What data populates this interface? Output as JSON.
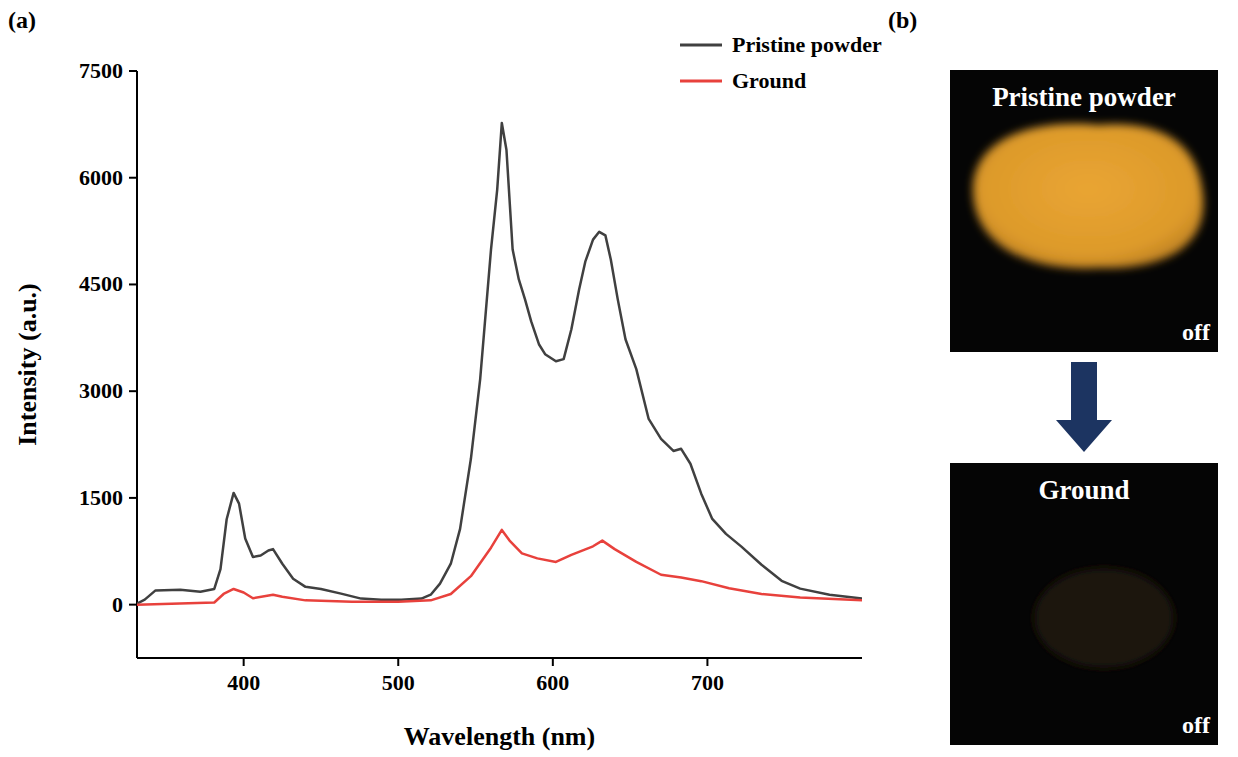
{
  "chart_data": {
    "type": "line",
    "x_label": "Wavelength (nm)",
    "y_label": "Intensity (a.u.)",
    "xlim": [
      331,
      800
    ],
    "xticks": [
      400,
      500,
      600,
      700
    ],
    "ylim": [
      -750,
      7500
    ],
    "yticks": [
      0,
      1500,
      3000,
      4500,
      6000,
      7500
    ],
    "legend": "upper right",
    "series": [
      {
        "name": "Pristine powder",
        "color": "#404040",
        "x": [
          331,
          336,
          343,
          359,
          372,
          381,
          385,
          389,
          393.5,
          397,
          401,
          406,
          411,
          416,
          419,
          425,
          432,
          440,
          450,
          463,
          476,
          489,
          502,
          515,
          521,
          527,
          534,
          540,
          547,
          553,
          560,
          564,
          567,
          570,
          574,
          578,
          582,
          586,
          591,
          595,
          602,
          607,
          612,
          617,
          621,
          626,
          630,
          634,
          637.5,
          642,
          647,
          654,
          662,
          670,
          678,
          683,
          689,
          696,
          703,
          712,
          722,
          735,
          748,
          760,
          779,
          800
        ],
        "values": [
          15,
          70,
          200,
          210,
          180,
          220,
          500,
          1200,
          1570,
          1420,
          930,
          670,
          690,
          760,
          780,
          575,
          365,
          250,
          220,
          155,
          85,
          70,
          70,
          85,
          140,
          295,
          575,
          1065,
          2050,
          3170,
          4990,
          5830,
          6770,
          6390,
          4990,
          4570,
          4290,
          3980,
          3660,
          3520,
          3420,
          3450,
          3870,
          4430,
          4820,
          5130,
          5240,
          5190,
          4850,
          4290,
          3730,
          3310,
          2610,
          2330,
          2160,
          2190,
          1980,
          1560,
          1210,
          995,
          815,
          560,
          335,
          225,
          140,
          85
        ]
      },
      {
        "name": "Ground",
        "color": "#e8413c",
        "x": [
          331,
          381,
          387,
          393.5,
          400,
          406,
          419,
          425,
          440,
          470,
          500,
          521,
          534,
          547,
          560,
          567,
          572,
          580,
          590,
          602,
          612,
          626,
          632,
          640,
          654,
          670,
          683,
          696,
          714,
          735,
          760,
          800
        ],
        "values": [
          0,
          30,
          150,
          220,
          170,
          90,
          140,
          110,
          60,
          40,
          40,
          60,
          150,
          400,
          800,
          1050,
          900,
          720,
          650,
          600,
          700,
          820,
          900,
          780,
          600,
          420,
          380,
          330,
          230,
          150,
          100,
          60
        ]
      }
    ]
  },
  "figure": {
    "panel_labels": [
      "(a)",
      "(b)"
    ],
    "photos": [
      {
        "title": "Pristine powder",
        "state": "off"
      },
      {
        "title": "Ground",
        "state": "off"
      }
    ]
  }
}
